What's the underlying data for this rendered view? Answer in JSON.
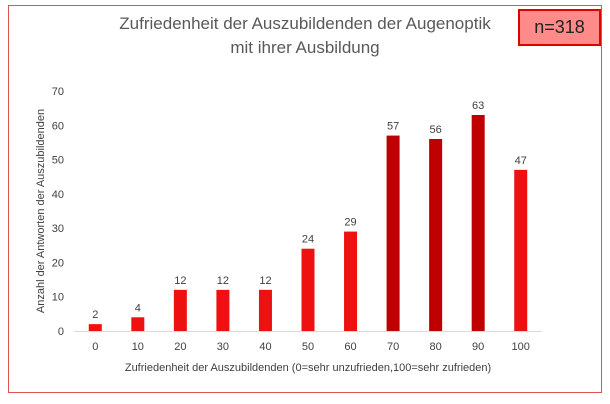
{
  "chart_data": {
    "type": "bar",
    "title": "Zufriedenheit der Auszubildenden der Augenoptik mit ihrer Ausbildung",
    "title_lines": [
      "Zufriedenheit der Auszubildenden der Augenoptik",
      "mit ihrer Ausbildung"
    ],
    "annotation": "n=318",
    "xlabel": "Zufriedenheit der Auszubildenden (0=sehr unzufrieden,100=sehr zufrieden)",
    "ylabel": "Anzahl der Antworten der Auszubildenden",
    "categories": [
      "0",
      "10",
      "20",
      "30",
      "40",
      "50",
      "60",
      "70",
      "80",
      "90",
      "100"
    ],
    "values": [
      2,
      4,
      12,
      12,
      12,
      24,
      29,
      57,
      56,
      63,
      47
    ],
    "ylim": [
      0,
      70
    ],
    "yticks": [
      0,
      10,
      20,
      30,
      40,
      50,
      60,
      70
    ],
    "grid": false,
    "legend": "none",
    "colors": {
      "bar_low": "#ee1111",
      "bar_high": "#c00000",
      "frame": "#d9534f",
      "annotation_fill": "#ff8a8a",
      "annotation_border": "#e00000"
    }
  }
}
